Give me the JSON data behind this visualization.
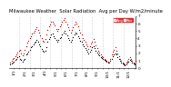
{
  "title": "Milwaukee Weather  Solar Radiation  Avg per Day W/m2/minute",
  "title_fontsize": 3.8,
  "background_color": "#ffffff",
  "plot_bg": "#ffffff",
  "series": [
    {
      "color": "#000000",
      "marker": "s",
      "markersize": 0.8,
      "label": "Avg",
      "x": [
        1,
        2,
        3,
        4,
        5,
        6,
        7,
        8,
        9,
        10,
        11,
        12,
        13,
        14,
        15,
        16,
        17,
        18,
        19,
        20,
        21,
        22,
        23,
        24,
        25,
        26,
        27,
        28,
        29,
        30,
        31,
        32,
        33,
        34,
        35,
        36,
        37,
        38,
        39,
        40,
        41,
        42,
        43,
        44,
        45,
        46,
        47,
        48,
        49,
        50,
        51,
        52,
        53,
        54,
        55,
        56,
        57,
        58,
        59,
        60,
        61,
        62,
        63,
        64,
        65,
        66,
        67,
        68,
        69,
        70,
        71,
        72,
        73,
        74,
        75,
        76,
        77,
        78,
        79,
        80,
        81,
        82,
        83,
        84,
        85,
        86,
        87,
        88,
        89,
        90,
        91,
        92,
        93,
        94,
        95,
        96,
        97,
        98,
        99,
        100,
        101,
        102,
        103,
        104
      ],
      "y": [
        0.5,
        0.6,
        0.7,
        0.9,
        1.1,
        1.3,
        1.5,
        1.6,
        1.3,
        1.1,
        0.9,
        1.1,
        1.3,
        1.8,
        2.0,
        2.2,
        2.5,
        2.8,
        3.0,
        3.2,
        3.4,
        3.6,
        3.8,
        3.5,
        3.2,
        2.9,
        2.6,
        2.4,
        2.2,
        2.4,
        2.8,
        3.5,
        3.9,
        4.2,
        4.5,
        4.6,
        4.3,
        4.1,
        3.8,
        3.5,
        3.8,
        4.0,
        4.2,
        4.5,
        4.8,
        5.0,
        4.7,
        4.4,
        4.1,
        3.8,
        3.5,
        3.8,
        4.2,
        4.5,
        4.8,
        4.6,
        4.3,
        4.0,
        3.7,
        3.5,
        3.2,
        2.9,
        2.7,
        2.5,
        2.2,
        2.0,
        2.2,
        2.5,
        2.8,
        3.0,
        2.7,
        2.4,
        2.1,
        1.9,
        1.7,
        1.5,
        1.4,
        1.3,
        1.1,
        1.0,
        0.9,
        0.8,
        0.7,
        1.0,
        1.3,
        1.6,
        1.8,
        2.0,
        1.8,
        1.5,
        1.2,
        1.0,
        0.8,
        0.6,
        0.5,
        0.4,
        0.5,
        0.7,
        0.9,
        1.1,
        1.0,
        0.8,
        0.6,
        0.5
      ]
    },
    {
      "color": "#cc0000",
      "marker": "s",
      "markersize": 0.8,
      "label": "Max",
      "x": [
        1,
        2,
        3,
        4,
        5,
        6,
        7,
        8,
        9,
        10,
        11,
        12,
        13,
        14,
        15,
        16,
        17,
        18,
        19,
        20,
        21,
        22,
        23,
        24,
        25,
        26,
        27,
        28,
        29,
        30,
        31,
        32,
        33,
        34,
        35,
        36,
        37,
        38,
        39,
        40,
        41,
        42,
        43,
        44,
        45,
        46,
        47,
        48,
        49,
        50,
        51,
        52,
        53,
        54,
        55,
        56,
        57,
        58,
        59,
        60,
        61,
        62,
        63,
        64,
        65,
        66,
        67,
        68,
        69,
        70,
        71,
        72,
        73,
        74,
        75,
        76,
        77,
        78,
        79,
        80,
        81,
        82,
        83,
        84,
        85,
        86,
        87,
        88,
        89,
        90,
        91,
        92,
        93,
        94,
        95,
        96,
        97,
        98,
        99,
        100,
        101,
        102,
        103,
        104
      ],
      "y": [
        0.8,
        1.0,
        1.2,
        1.4,
        1.6,
        1.9,
        2.1,
        2.3,
        2.5,
        2.0,
        1.7,
        2.0,
        2.5,
        3.0,
        3.4,
        3.7,
        4.0,
        4.3,
        4.6,
        4.8,
        5.0,
        5.3,
        5.5,
        5.2,
        4.8,
        4.4,
        4.0,
        3.7,
        3.5,
        3.9,
        4.5,
        5.2,
        5.6,
        5.9,
        6.2,
        6.3,
        6.0,
        5.7,
        5.3,
        5.0,
        5.3,
        5.6,
        5.9,
        6.2,
        6.5,
        6.7,
        6.3,
        5.9,
        5.5,
        5.1,
        4.8,
        5.1,
        5.5,
        5.9,
        6.2,
        6.0,
        5.6,
        5.2,
        4.8,
        4.5,
        4.1,
        3.8,
        3.5,
        3.2,
        2.9,
        2.6,
        2.9,
        3.3,
        3.6,
        3.9,
        3.5,
        3.1,
        2.7,
        2.4,
        2.1,
        1.8,
        1.6,
        1.5,
        1.3,
        1.1,
        1.0,
        0.9,
        0.8,
        1.3,
        1.8,
        2.2,
        2.5,
        2.8,
        2.4,
        2.0,
        1.6,
        1.3,
        1.0,
        0.8,
        0.6,
        0.5,
        0.7,
        1.0,
        1.3,
        1.5,
        1.3,
        1.0,
        0.8,
        0.6
      ]
    }
  ],
  "xlim": [
    0,
    105
  ],
  "ylim": [
    0,
    7
  ],
  "yticks": [
    0,
    1,
    2,
    3,
    4,
    5,
    6,
    7
  ],
  "xtick_positions": [
    4,
    8,
    13,
    17,
    21,
    26,
    30,
    34,
    39,
    43,
    47,
    52,
    56,
    60,
    65,
    69,
    73,
    78,
    82,
    86,
    91,
    95,
    99,
    104
  ],
  "xtick_labels": [
    "1/1",
    "",
    "2/1",
    "",
    "3/1",
    "",
    "4/1",
    "",
    "5/1",
    "",
    "6/1",
    "",
    "7/1",
    "",
    "8/1",
    "",
    "9/1",
    "",
    "10/1",
    "",
    "11/1",
    "",
    "12/1",
    ""
  ],
  "vgrid_positions": [
    8,
    17,
    26,
    34,
    43,
    52,
    60,
    69,
    78,
    86,
    95,
    104
  ],
  "tick_fontsize": 3.0,
  "legend_facecolor": "#cc0000",
  "legend_fontsize": 3.0
}
